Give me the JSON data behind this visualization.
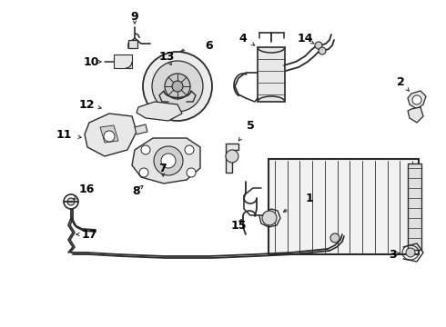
{
  "bg_color": "#ffffff",
  "line_color": "#2a2a2a",
  "label_color": "#000000",
  "fig_width": 4.9,
  "fig_height": 3.6,
  "dpi": 100
}
